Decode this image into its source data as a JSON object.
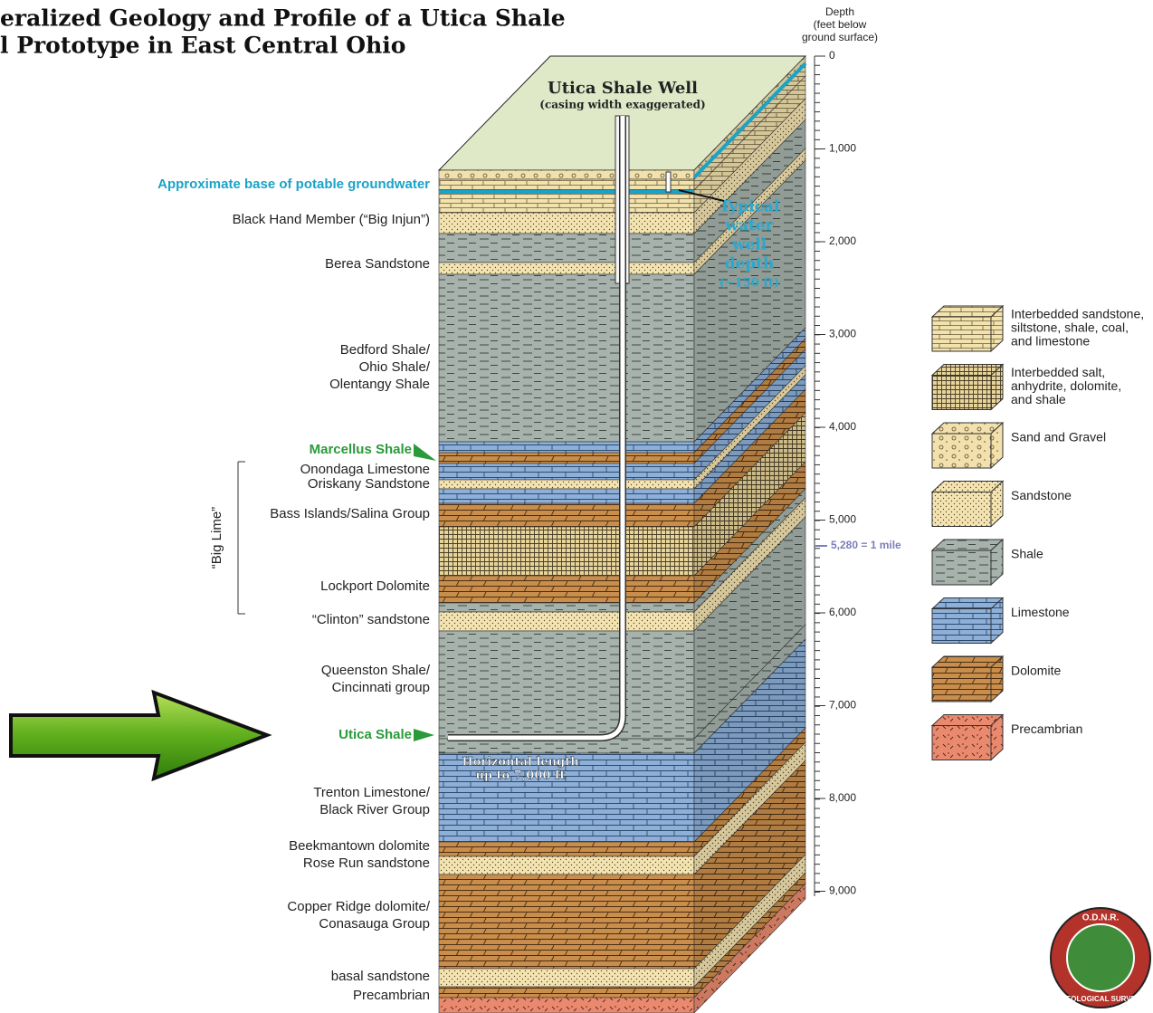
{
  "title": {
    "line1": "eralized Geology and Profile of a Utica Shale",
    "line2": "l Prototype in East Central Ohio"
  },
  "depth_axis": {
    "title": [
      "Depth",
      "(feet below",
      "ground surface)"
    ],
    "ticks": [
      "0",
      "1,000",
      "2,000",
      "3,000",
      "4,000",
      "5,000",
      "6,000",
      "7,000",
      "8,000",
      "9,000"
    ],
    "mile_marker": "5,280 = 1 mile"
  },
  "well": {
    "title": "Utica Shale Well",
    "note": "(casing width exaggerated)",
    "water_well": [
      "Typical",
      "water",
      "well",
      "depth",
      "(~150 ft)"
    ],
    "horizontal": [
      "Horizontal length",
      "up to 7,000 ft"
    ]
  },
  "layer_labels": [
    [
      "Approximate base of potable groundwater"
    ],
    [
      "Black Hand Member (“Big Injun”)"
    ],
    [
      "Berea Sandstone"
    ],
    [
      "Bedford Shale/",
      "Ohio Shale/",
      "Olentangy Shale"
    ],
    [
      "Marcellus Shale"
    ],
    [
      "Onondaga Limestone",
      "Oriskany Sandstone"
    ],
    [
      "Bass Islands/Salina Group"
    ],
    [
      "Lockport Dolomite"
    ],
    [
      "“Clinton” sandstone"
    ],
    [
      "Queenston Shale/",
      "Cincinnati group"
    ],
    [
      "Utica Shale"
    ],
    [
      "Trenton Limestone/",
      "Black River Group"
    ],
    [
      "Beekmantown dolomite",
      "Rose Run sandstone"
    ],
    [
      "Copper Ridge dolomite/",
      "Conasauga Group"
    ],
    [
      "basal sandstone"
    ],
    [
      "Precambrian"
    ]
  ],
  "big_lime": "“Big Lime”",
  "legend": [
    [
      "Interbedded sandstone,",
      "siltstone, shale, coal,",
      "and limestone"
    ],
    [
      "Interbedded salt,",
      "anhydrite, dolomite,",
      "and shale"
    ],
    [
      "Sand and Gravel"
    ],
    [
      "Sandstone"
    ],
    [
      "Shale"
    ],
    [
      "Limestone"
    ],
    [
      "Dolomite"
    ],
    [
      "Precambrian"
    ]
  ],
  "logo": {
    "top": "O.D.N.R.",
    "bottom": "GEOLOGICAL SURVEY"
  }
}
